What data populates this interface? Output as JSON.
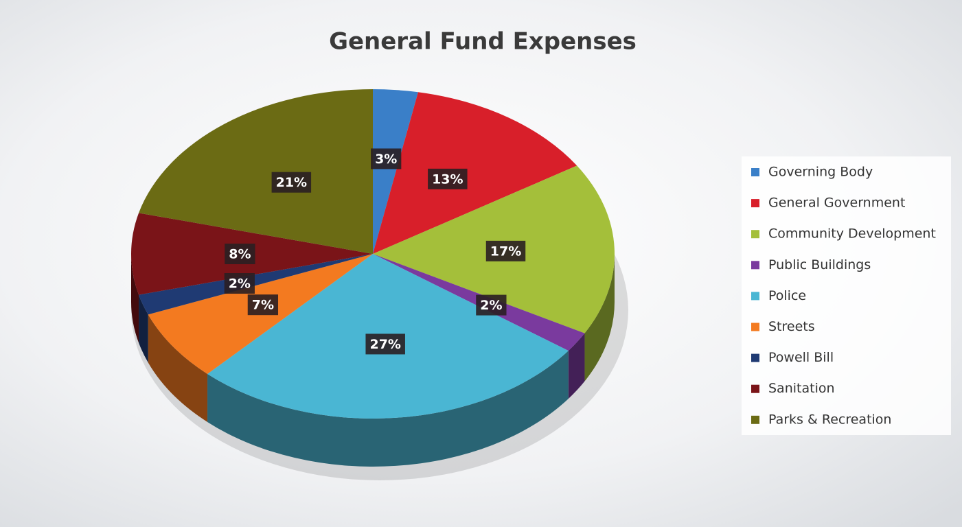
{
  "chart_data": {
    "type": "pie",
    "title": "General Fund Expenses",
    "categories": [
      "Governing Body",
      "General Government",
      "Community Development",
      "Public Buildings",
      "Police",
      "Streets",
      "Powell Bill",
      "Sanitation",
      "Parks & Recreation"
    ],
    "values": [
      3,
      13,
      17,
      2,
      27,
      7,
      2,
      8,
      21
    ],
    "value_labels": [
      "3%",
      "13%",
      "17%",
      "2%",
      "27%",
      "7%",
      "2%",
      "8%",
      "21%"
    ],
    "colors": [
      "#3a7fc8",
      "#d81f2a",
      "#a4bf3a",
      "#7a3a9e",
      "#4ab6d3",
      "#f37a20",
      "#1f3a73",
      "#7a1418",
      "#6b6b14"
    ],
    "legend": "right"
  }
}
